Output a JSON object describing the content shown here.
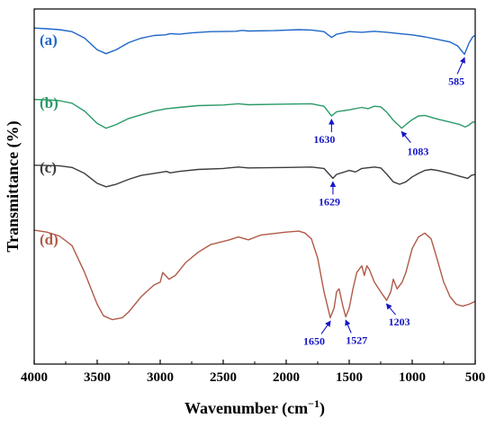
{
  "chart_data": {
    "type": "line",
    "title": "",
    "xlabel": "Wavenumber (cm",
    "xlabel_sup": "−1",
    "xlabel_close": ")",
    "ylabel": "Transmittance (%)",
    "xlim": [
      4000,
      500
    ],
    "xticks": [
      4000,
      3500,
      3000,
      2500,
      2000,
      1500,
      1000,
      500
    ],
    "y_ticks_shown": false,
    "grid": false,
    "legend": "none",
    "peak_color": "#1515c8",
    "series": [
      {
        "name": "(a)",
        "color": "#1f66c8",
        "points": [
          [
            4000,
            0.955
          ],
          [
            3900,
            0.945
          ],
          [
            3800,
            0.93
          ],
          [
            3700,
            0.9
          ],
          [
            3600,
            0.8
          ],
          [
            3500,
            0.62
          ],
          [
            3430,
            0.56
          ],
          [
            3350,
            0.62
          ],
          [
            3250,
            0.73
          ],
          [
            3150,
            0.8
          ],
          [
            3050,
            0.84
          ],
          [
            2960,
            0.85
          ],
          [
            2920,
            0.87
          ],
          [
            2850,
            0.86
          ],
          [
            2750,
            0.88
          ],
          [
            2600,
            0.9
          ],
          [
            2400,
            0.905
          ],
          [
            2350,
            0.92
          ],
          [
            2300,
            0.91
          ],
          [
            2100,
            0.915
          ],
          [
            1900,
            0.93
          ],
          [
            1800,
            0.925
          ],
          [
            1700,
            0.9
          ],
          [
            1640,
            0.81
          ],
          [
            1600,
            0.86
          ],
          [
            1500,
            0.9
          ],
          [
            1400,
            0.89
          ],
          [
            1300,
            0.905
          ],
          [
            1200,
            0.89
          ],
          [
            1100,
            0.87
          ],
          [
            1000,
            0.85
          ],
          [
            900,
            0.82
          ],
          [
            800,
            0.78
          ],
          [
            700,
            0.74
          ],
          [
            640,
            0.68
          ],
          [
            585,
            0.55
          ],
          [
            550,
            0.72
          ],
          [
            520,
            0.82
          ],
          [
            500,
            0.84
          ]
        ]
      },
      {
        "name": "(b)",
        "color": "#2a9a68",
        "points": [
          [
            4000,
            0.99
          ],
          [
            3900,
            0.985
          ],
          [
            3800,
            0.97
          ],
          [
            3700,
            0.93
          ],
          [
            3600,
            0.8
          ],
          [
            3500,
            0.6
          ],
          [
            3430,
            0.52
          ],
          [
            3350,
            0.58
          ],
          [
            3250,
            0.68
          ],
          [
            3150,
            0.74
          ],
          [
            3050,
            0.8
          ],
          [
            2950,
            0.84
          ],
          [
            2850,
            0.86
          ],
          [
            2700,
            0.89
          ],
          [
            2500,
            0.9
          ],
          [
            2380,
            0.92
          ],
          [
            2300,
            0.905
          ],
          [
            2000,
            0.915
          ],
          [
            1800,
            0.92
          ],
          [
            1700,
            0.88
          ],
          [
            1640,
            0.72
          ],
          [
            1600,
            0.79
          ],
          [
            1500,
            0.82
          ],
          [
            1400,
            0.86
          ],
          [
            1350,
            0.84
          ],
          [
            1300,
            0.88
          ],
          [
            1250,
            0.87
          ],
          [
            1200,
            0.78
          ],
          [
            1150,
            0.65
          ],
          [
            1083,
            0.52
          ],
          [
            1050,
            0.58
          ],
          [
            1000,
            0.66
          ],
          [
            950,
            0.72
          ],
          [
            900,
            0.73
          ],
          [
            850,
            0.7
          ],
          [
            800,
            0.67
          ],
          [
            700,
            0.62
          ],
          [
            620,
            0.58
          ],
          [
            580,
            0.54
          ],
          [
            550,
            0.57
          ],
          [
            520,
            0.62
          ],
          [
            500,
            0.62
          ]
        ]
      },
      {
        "name": "(c)",
        "color": "#3c3c3c",
        "points": [
          [
            4000,
            0.985
          ],
          [
            3900,
            0.98
          ],
          [
            3800,
            0.975
          ],
          [
            3700,
            0.94
          ],
          [
            3600,
            0.82
          ],
          [
            3500,
            0.62
          ],
          [
            3430,
            0.55
          ],
          [
            3350,
            0.6
          ],
          [
            3250,
            0.7
          ],
          [
            3150,
            0.78
          ],
          [
            3050,
            0.82
          ],
          [
            2950,
            0.86
          ],
          [
            2920,
            0.83
          ],
          [
            2850,
            0.86
          ],
          [
            2700,
            0.9
          ],
          [
            2500,
            0.92
          ],
          [
            2380,
            0.95
          ],
          [
            2300,
            0.93
          ],
          [
            2000,
            0.94
          ],
          [
            1800,
            0.95
          ],
          [
            1700,
            0.92
          ],
          [
            1629,
            0.72
          ],
          [
            1600,
            0.8
          ],
          [
            1500,
            0.88
          ],
          [
            1450,
            0.85
          ],
          [
            1400,
            0.92
          ],
          [
            1300,
            0.95
          ],
          [
            1250,
            0.93
          ],
          [
            1200,
            0.8
          ],
          [
            1150,
            0.65
          ],
          [
            1100,
            0.6
          ],
          [
            1050,
            0.65
          ],
          [
            1000,
            0.75
          ],
          [
            950,
            0.82
          ],
          [
            900,
            0.88
          ],
          [
            850,
            0.9
          ],
          [
            800,
            0.88
          ],
          [
            700,
            0.82
          ],
          [
            620,
            0.76
          ],
          [
            560,
            0.72
          ],
          [
            530,
            0.78
          ],
          [
            500,
            0.8
          ]
        ]
      },
      {
        "name": "(d)",
        "color": "#b05a48",
        "points": [
          [
            4000,
            0.99
          ],
          [
            3900,
            0.97
          ],
          [
            3800,
            0.93
          ],
          [
            3700,
            0.83
          ],
          [
            3600,
            0.55
          ],
          [
            3500,
            0.22
          ],
          [
            3450,
            0.1
          ],
          [
            3380,
            0.06
          ],
          [
            3300,
            0.08
          ],
          [
            3250,
            0.14
          ],
          [
            3150,
            0.3
          ],
          [
            3050,
            0.42
          ],
          [
            3000,
            0.45
          ],
          [
            2980,
            0.55
          ],
          [
            2930,
            0.48
          ],
          [
            2880,
            0.52
          ],
          [
            2800,
            0.65
          ],
          [
            2700,
            0.76
          ],
          [
            2600,
            0.84
          ],
          [
            2450,
            0.89
          ],
          [
            2380,
            0.92
          ],
          [
            2300,
            0.89
          ],
          [
            2200,
            0.94
          ],
          [
            2000,
            0.97
          ],
          [
            1900,
            0.98
          ],
          [
            1850,
            0.96
          ],
          [
            1800,
            0.9
          ],
          [
            1750,
            0.7
          ],
          [
            1700,
            0.35
          ],
          [
            1650,
            0.08
          ],
          [
            1620,
            0.18
          ],
          [
            1600,
            0.35
          ],
          [
            1580,
            0.38
          ],
          [
            1550,
            0.2
          ],
          [
            1527,
            0.09
          ],
          [
            1500,
            0.18
          ],
          [
            1470,
            0.38
          ],
          [
            1440,
            0.55
          ],
          [
            1400,
            0.62
          ],
          [
            1380,
            0.52
          ],
          [
            1360,
            0.62
          ],
          [
            1340,
            0.58
          ],
          [
            1300,
            0.45
          ],
          [
            1250,
            0.35
          ],
          [
            1203,
            0.26
          ],
          [
            1170,
            0.35
          ],
          [
            1150,
            0.48
          ],
          [
            1120,
            0.38
          ],
          [
            1080,
            0.45
          ],
          [
            1050,
            0.55
          ],
          [
            1000,
            0.8
          ],
          [
            950,
            0.92
          ],
          [
            900,
            0.96
          ],
          [
            850,
            0.9
          ],
          [
            800,
            0.68
          ],
          [
            750,
            0.45
          ],
          [
            700,
            0.3
          ],
          [
            650,
            0.22
          ],
          [
            600,
            0.2
          ],
          [
            550,
            0.22
          ],
          [
            500,
            0.25
          ]
        ]
      }
    ],
    "annotations": [
      {
        "label": "585",
        "series": 0,
        "x": 585
      },
      {
        "label": "1630",
        "series": 1,
        "x": 1640
      },
      {
        "label": "1083",
        "series": 1,
        "x": 1083
      },
      {
        "label": "1629",
        "series": 2,
        "x": 1629
      },
      {
        "label": "1650",
        "series": 3,
        "x": 1650
      },
      {
        "label": "1527",
        "series": 3,
        "x": 1527
      },
      {
        "label": "1203",
        "series": 3,
        "x": 1203
      }
    ]
  }
}
